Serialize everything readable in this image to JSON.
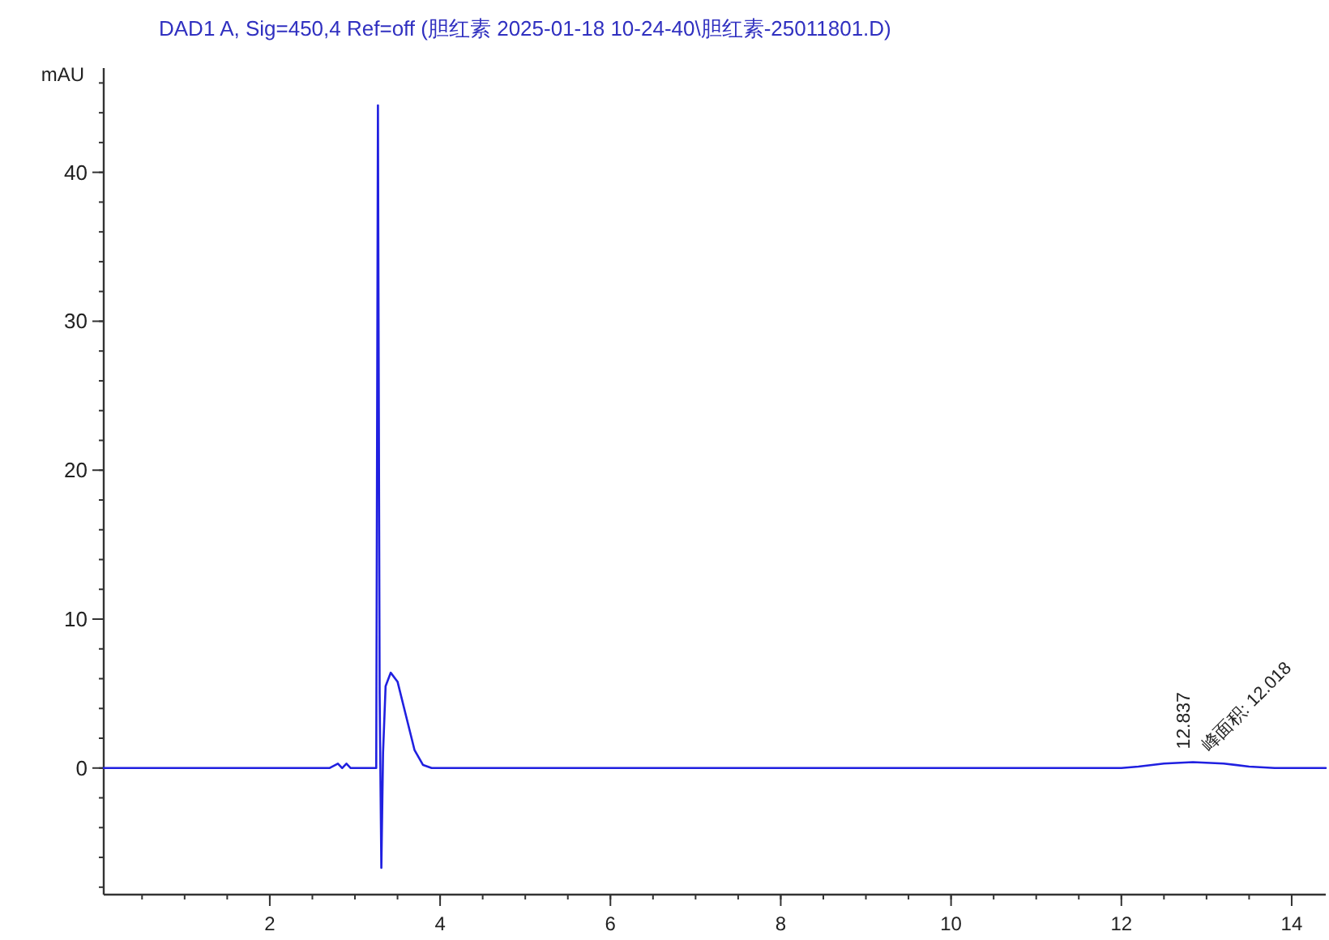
{
  "chart_data": {
    "type": "line",
    "title": "DAD1 A, Sig=450,4 Ref=off (胆红素 2025-01-18 10-24-40\\胆红素-25011801.D)",
    "ylabel": "mAU",
    "xlim": [
      0.05,
      14.4
    ],
    "ylim": [
      -8.5,
      47
    ],
    "xticks": [
      2,
      4,
      6,
      8,
      10,
      12,
      14
    ],
    "yticks": [
      0,
      10,
      20,
      30,
      40
    ],
    "grid": false,
    "series": [
      {
        "color": "#2020e0",
        "x": [
          0.05,
          1,
          2,
          2.7,
          2.8,
          2.85,
          2.9,
          2.95,
          3.0,
          3.2,
          3.25,
          3.27,
          3.29,
          3.31,
          3.33,
          3.36,
          3.42,
          3.5,
          3.6,
          3.7,
          3.8,
          3.9,
          5,
          8,
          10,
          12,
          12.2,
          12.5,
          12.84,
          13.2,
          13.5,
          13.8,
          14.4
        ],
        "values": [
          0,
          0,
          0,
          0,
          0.3,
          0,
          0.3,
          0,
          0,
          0,
          0,
          44.5,
          5,
          -6.7,
          1,
          5.5,
          6.4,
          5.8,
          3.5,
          1.2,
          0.2,
          0,
          0,
          0,
          0,
          0,
          0.1,
          0.3,
          0.4,
          0.3,
          0.1,
          0,
          0
        ]
      }
    ],
    "annotations": [
      {
        "text": "12.837",
        "x": 12.837,
        "y": 0.4
      },
      {
        "text": "峰面积: 12.018",
        "x": 12.837,
        "y": 0.4
      }
    ]
  }
}
